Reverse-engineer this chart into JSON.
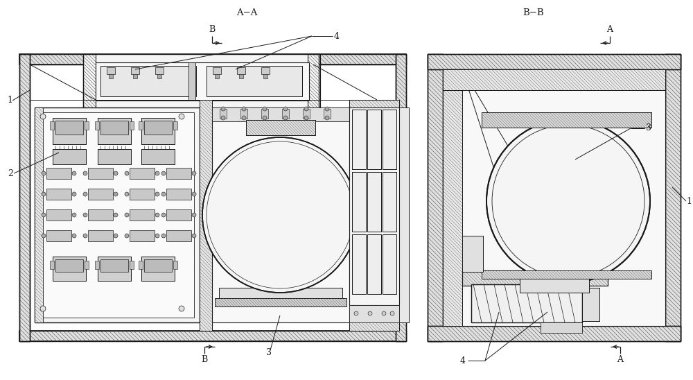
{
  "background_color": "#ffffff",
  "line_color": "#1a1a1a",
  "gray_fill": "#d8d8d8",
  "light_fill": "#eeeeee",
  "medium_fill": "#c8c8c8",
  "figsize": [
    10.0,
    5.48
  ],
  "dpi": 100,
  "labels": {
    "AA": "A−A",
    "BB": "B−B",
    "B_arrow_top": "B",
    "B_arrow_bottom": "B",
    "A_arrow_top": "A",
    "A_arrow_bottom": "A",
    "num1": "1",
    "num2": "2",
    "num3": "3",
    "num4": "4"
  }
}
